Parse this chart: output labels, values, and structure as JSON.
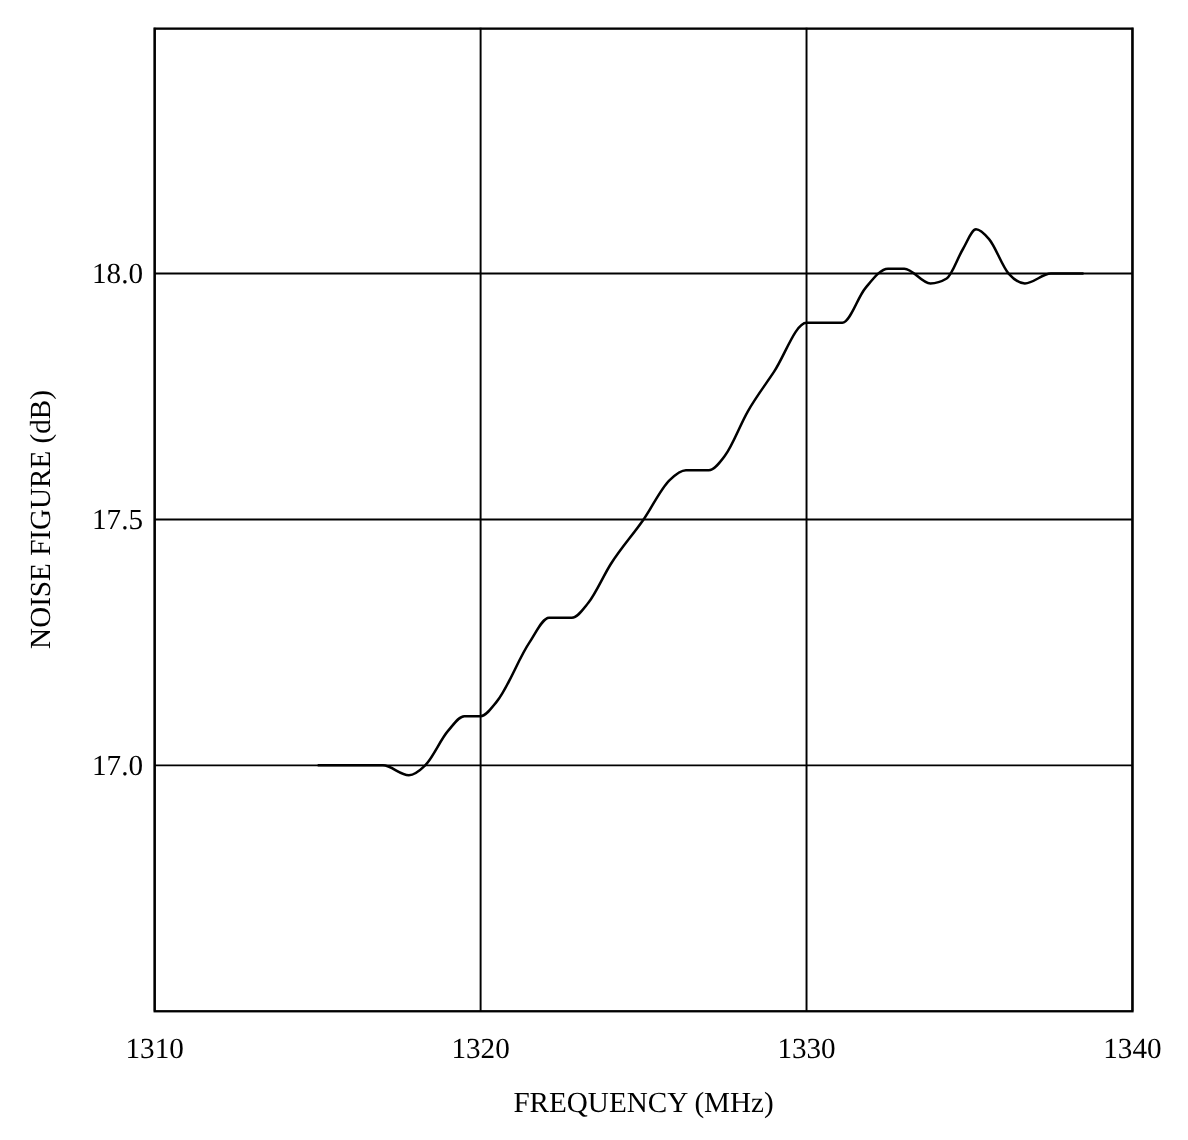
{
  "chart_data": {
    "type": "line",
    "xlabel": "FREQUENCY (MHz)",
    "ylabel": "NOISE FIGURE (dB)",
    "xlim": [
      1310,
      1340
    ],
    "xticks": [
      1310,
      1320,
      1330,
      1340
    ],
    "ylim": [
      16.5,
      18.5
    ],
    "yticks": [
      {
        "value": 17,
        "label": "17.0"
      },
      17.5,
      {
        "value": 18,
        "label": "18.0"
      }
    ],
    "grid": true,
    "marker": "none",
    "line_style": "solid",
    "series": [
      {
        "color": "#000000",
        "x": [
          1315,
          1317,
          1317.8,
          1318.3,
          1319,
          1319.5,
          1320,
          1320.5,
          1321.5,
          1322.1,
          1322.8,
          1323.3,
          1324,
          1325,
          1325.8,
          1326.3,
          1327,
          1327.5,
          1328.2,
          1329,
          1330,
          1330.5,
          1331.1,
          1331.8,
          1332.5,
          1333,
          1333.8,
          1334.3,
          1334.8,
          1335.2,
          1335.6,
          1336.2,
          1336.7,
          1337.5,
          1338.5
        ],
        "values": [
          17.0,
          17.0,
          16.98,
          17.0,
          17.07,
          17.1,
          17.1,
          17.13,
          17.25,
          17.3,
          17.3,
          17.33,
          17.41,
          17.5,
          17.58,
          17.6,
          17.6,
          17.63,
          17.72,
          17.8,
          17.9,
          17.9,
          17.9,
          17.97,
          18.01,
          18.01,
          17.98,
          17.99,
          18.05,
          18.09,
          18.07,
          18.0,
          17.98,
          18.0,
          18.0
        ]
      }
    ]
  }
}
